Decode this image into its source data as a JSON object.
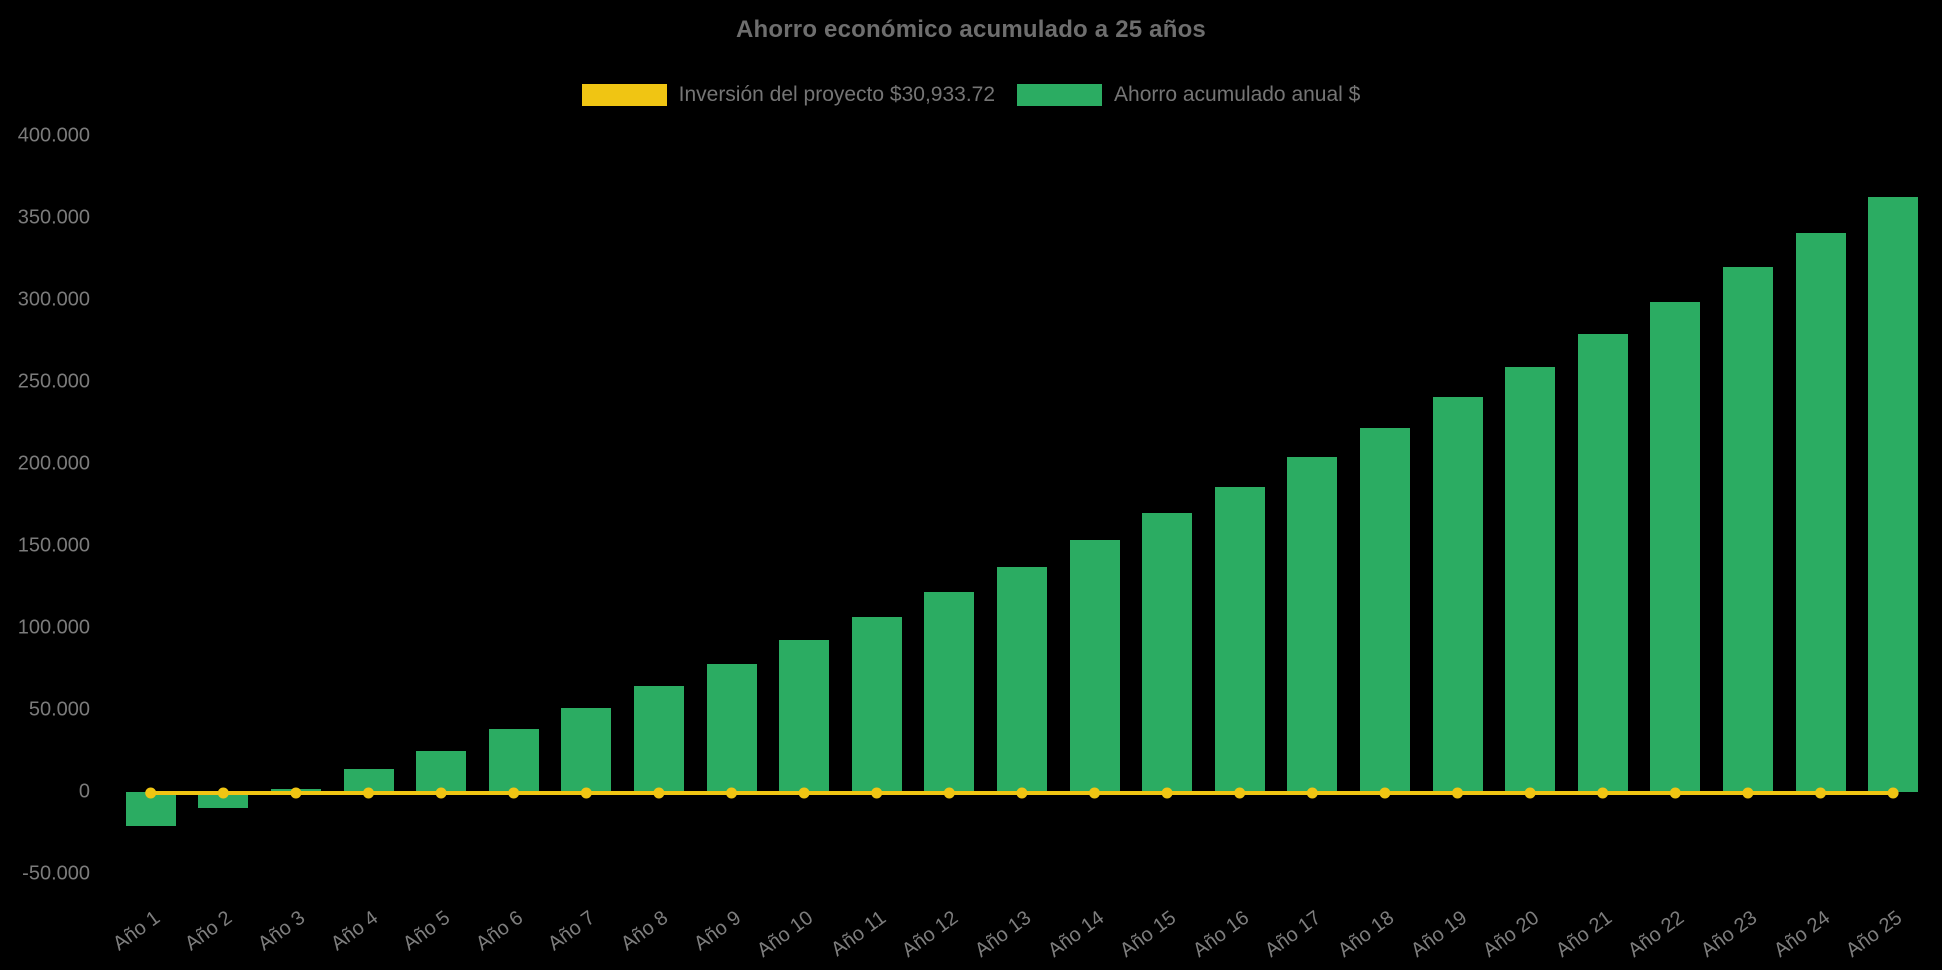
{
  "title": "Ahorro económico acumulado a 25 años",
  "legend": [
    {
      "label": "Inversión del proyecto $30,933.72",
      "color": "#F0C513",
      "type": "line"
    },
    {
      "label": "Ahorro acumulado anual $",
      "color": "#2BAC62",
      "type": "bar"
    }
  ],
  "colors": {
    "background": "#000000",
    "bar_green": "#2BAC62",
    "line_yellow": "#F0C513",
    "title_gray": "#6e6e6e",
    "axis_gray": "#7b7b7b"
  },
  "chart_data": {
    "type": "bar",
    "title": "Ahorro económico acumulado a 25 años",
    "xlabel": "",
    "ylabel": "",
    "grid": false,
    "legend_position": "top",
    "x_label_rotation": -36,
    "ylim": [
      -50000,
      400000
    ],
    "ytick_step": 50000,
    "yticks": [
      400000,
      350000,
      300000,
      250000,
      200000,
      150000,
      100000,
      50000,
      0,
      -50000
    ],
    "ytick_labels": [
      "400.000",
      "350.000",
      "300.000",
      "250.000",
      "200.000",
      "150.000",
      "100.000",
      "50.000",
      "0",
      "-50.000"
    ],
    "categories": [
      "Año 1",
      "Año 2",
      "Año 3",
      "Año 4",
      "Año 5",
      "Año 6",
      "Año 7",
      "Año 8",
      "Año 9",
      "Año 10",
      "Año 11",
      "Año 12",
      "Año 13",
      "Año 14",
      "Año 15",
      "Año 16",
      "Año 17",
      "Año 18",
      "Año 19",
      "Año 20",
      "Año 21",
      "Año 22",
      "Año 23",
      "Año 24",
      "Año 25"
    ],
    "series": [
      {
        "name": "Ahorro acumulado anual $",
        "type": "bar",
        "color": "#2BAC62",
        "values": [
          -20700,
          -9600,
          2100,
          14000,
          25200,
          38200,
          51200,
          64600,
          77900,
          92700,
          106900,
          121800,
          137400,
          153700,
          170300,
          185800,
          204100,
          221800,
          240700,
          259300,
          279500,
          299000,
          320000,
          341000,
          363000
        ]
      },
      {
        "name": "Inversión del proyecto $30,933.72",
        "type": "line",
        "color": "#F0C513",
        "marker": "circle",
        "values": [
          0,
          0,
          0,
          0,
          0,
          0,
          0,
          0,
          0,
          0,
          0,
          0,
          0,
          0,
          0,
          0,
          0,
          0,
          0,
          0,
          0,
          0,
          0,
          0,
          0
        ]
      }
    ]
  }
}
